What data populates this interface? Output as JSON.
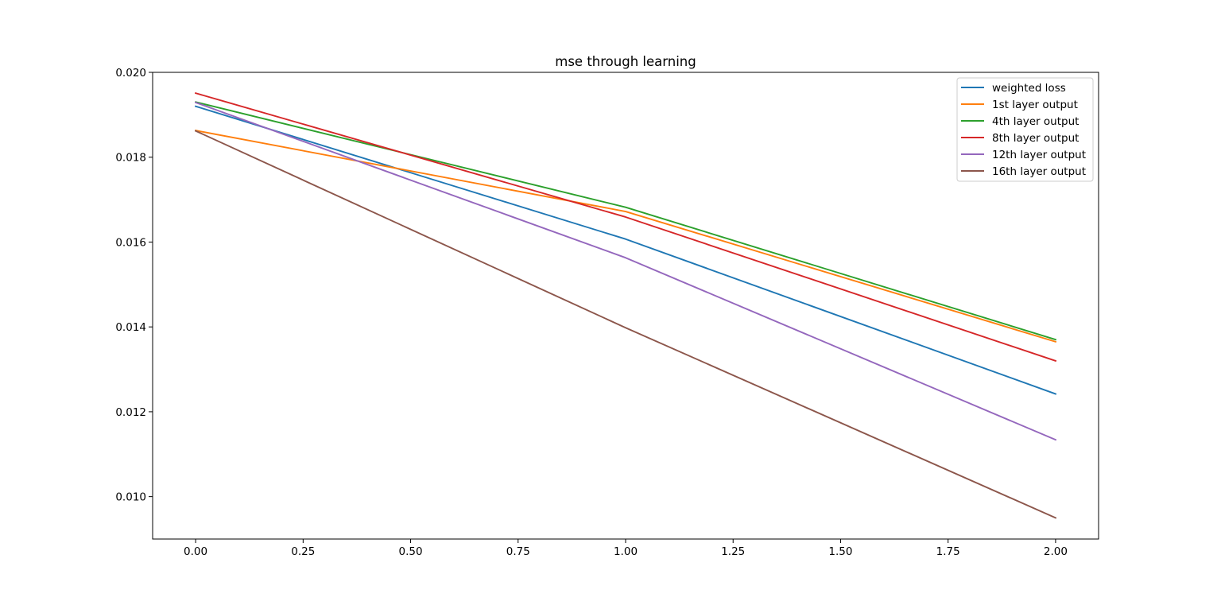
{
  "chart_data": {
    "type": "line",
    "title": "mse through learning",
    "xlabel": "",
    "ylabel": "",
    "x": [
      0,
      1,
      2
    ],
    "xlim": [
      -0.1,
      2.1
    ],
    "ylim": [
      0.009,
      0.02
    ],
    "xticks": [
      "0.00",
      "0.25",
      "0.50",
      "0.75",
      "1.00",
      "1.25",
      "1.50",
      "1.75",
      "2.00"
    ],
    "yticks": [
      "0.010",
      "0.012",
      "0.014",
      "0.016",
      "0.018",
      "0.020"
    ],
    "grid": false,
    "legend_position": "top-right",
    "series": [
      {
        "name": "weighted loss",
        "color": "#1f77b4",
        "values": [
          0.0192,
          0.01607,
          0.01242
        ]
      },
      {
        "name": "1st layer output",
        "color": "#ff7f0e",
        "values": [
          0.01863,
          0.01672,
          0.01365
        ]
      },
      {
        "name": "4th layer output",
        "color": "#2ca02c",
        "values": [
          0.0193,
          0.01682,
          0.0137
        ]
      },
      {
        "name": "8th layer output",
        "color": "#d62728",
        "values": [
          0.01951,
          0.01659,
          0.0132
        ]
      },
      {
        "name": "12th layer output",
        "color": "#9467bd",
        "values": [
          0.01929,
          0.01563,
          0.01134
        ]
      },
      {
        "name": "16th layer output",
        "color": "#8c564b",
        "values": [
          0.01862,
          0.01398,
          0.0095
        ]
      }
    ]
  }
}
